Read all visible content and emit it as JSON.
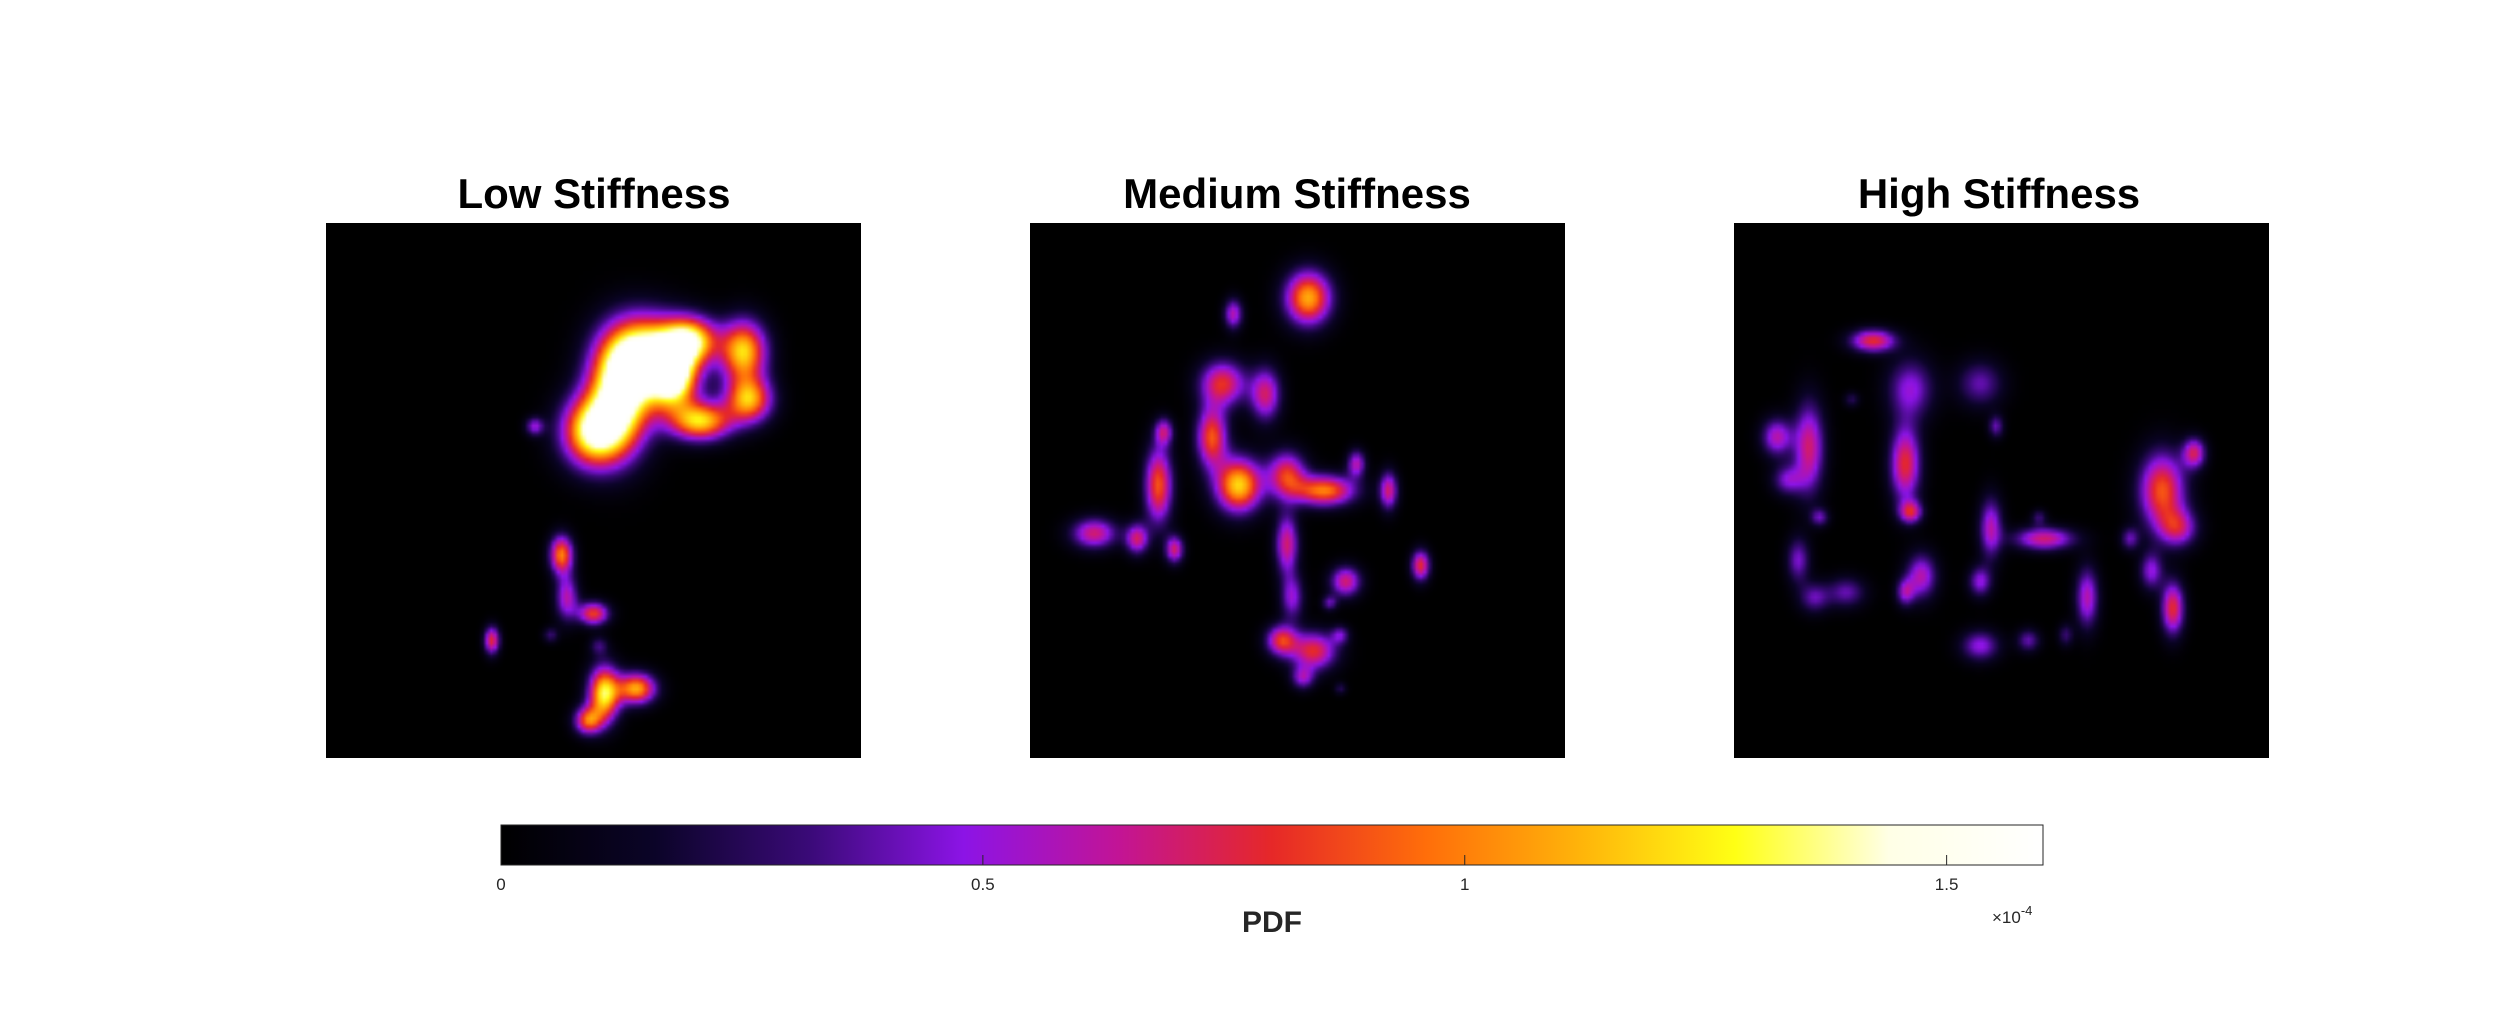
{
  "chart_data": {
    "type": "heatmap",
    "colormap": "hot-purple (black → purple → red → orange → yellow → white)",
    "panels": [
      {
        "title": "Low Stiffness",
        "blobs": [
          {
            "x": 0.6,
            "y": 0.25,
            "sx": 0.05,
            "sy": 0.05,
            "w": 1.55
          },
          {
            "x": 0.55,
            "y": 0.32,
            "sx": 0.04,
            "sy": 0.07,
            "w": 1.5
          },
          {
            "x": 0.5,
            "y": 0.39,
            "sx": 0.04,
            "sy": 0.045,
            "w": 1.4
          },
          {
            "x": 0.68,
            "y": 0.22,
            "sx": 0.035,
            "sy": 0.03,
            "w": 1.3
          },
          {
            "x": 0.78,
            "y": 0.24,
            "sx": 0.03,
            "sy": 0.04,
            "w": 1.2
          },
          {
            "x": 0.79,
            "y": 0.33,
            "sx": 0.03,
            "sy": 0.03,
            "w": 1.1
          },
          {
            "x": 0.7,
            "y": 0.37,
            "sx": 0.04,
            "sy": 0.025,
            "w": 1.2
          },
          {
            "x": 0.65,
            "y": 0.29,
            "sx": 0.03,
            "sy": 0.04,
            "w": 1.35
          },
          {
            "x": 0.39,
            "y": 0.38,
            "sx": 0.012,
            "sy": 0.012,
            "w": 0.5
          },
          {
            "x": 0.44,
            "y": 0.62,
            "sx": 0.015,
            "sy": 0.025,
            "w": 1.0
          },
          {
            "x": 0.45,
            "y": 0.7,
            "sx": 0.015,
            "sy": 0.03,
            "w": 0.6
          },
          {
            "x": 0.5,
            "y": 0.73,
            "sx": 0.02,
            "sy": 0.015,
            "w": 0.85
          },
          {
            "x": 0.31,
            "y": 0.78,
            "sx": 0.01,
            "sy": 0.018,
            "w": 0.8
          },
          {
            "x": 0.42,
            "y": 0.77,
            "sx": 0.01,
            "sy": 0.01,
            "w": 0.3
          },
          {
            "x": 0.51,
            "y": 0.79,
            "sx": 0.012,
            "sy": 0.012,
            "w": 0.3
          },
          {
            "x": 0.52,
            "y": 0.88,
            "sx": 0.02,
            "sy": 0.035,
            "w": 1.3
          },
          {
            "x": 0.58,
            "y": 0.87,
            "sx": 0.025,
            "sy": 0.02,
            "w": 1.1
          },
          {
            "x": 0.49,
            "y": 0.93,
            "sx": 0.018,
            "sy": 0.018,
            "w": 0.9
          }
        ]
      },
      {
        "title": "Medium Stiffness",
        "blobs": [
          {
            "x": 0.52,
            "y": 0.14,
            "sx": 0.03,
            "sy": 0.035,
            "w": 1.1
          },
          {
            "x": 0.38,
            "y": 0.17,
            "sx": 0.012,
            "sy": 0.02,
            "w": 0.6
          },
          {
            "x": 0.36,
            "y": 0.3,
            "sx": 0.03,
            "sy": 0.03,
            "w": 0.8
          },
          {
            "x": 0.34,
            "y": 0.4,
            "sx": 0.02,
            "sy": 0.04,
            "w": 0.9
          },
          {
            "x": 0.44,
            "y": 0.32,
            "sx": 0.02,
            "sy": 0.035,
            "w": 0.7
          },
          {
            "x": 0.25,
            "y": 0.39,
            "sx": 0.012,
            "sy": 0.018,
            "w": 0.6
          },
          {
            "x": 0.39,
            "y": 0.49,
            "sx": 0.03,
            "sy": 0.035,
            "w": 1.2
          },
          {
            "x": 0.48,
            "y": 0.47,
            "sx": 0.025,
            "sy": 0.03,
            "w": 0.8
          },
          {
            "x": 0.55,
            "y": 0.5,
            "sx": 0.04,
            "sy": 0.02,
            "w": 1.0
          },
          {
            "x": 0.61,
            "y": 0.45,
            "sx": 0.012,
            "sy": 0.018,
            "w": 0.6
          },
          {
            "x": 0.67,
            "y": 0.5,
            "sx": 0.012,
            "sy": 0.025,
            "w": 0.7
          },
          {
            "x": 0.73,
            "y": 0.64,
            "sx": 0.012,
            "sy": 0.02,
            "w": 0.8
          },
          {
            "x": 0.24,
            "y": 0.49,
            "sx": 0.018,
            "sy": 0.05,
            "w": 0.9
          },
          {
            "x": 0.2,
            "y": 0.59,
            "sx": 0.015,
            "sy": 0.02,
            "w": 0.7
          },
          {
            "x": 0.27,
            "y": 0.61,
            "sx": 0.012,
            "sy": 0.018,
            "w": 0.7
          },
          {
            "x": 0.12,
            "y": 0.58,
            "sx": 0.03,
            "sy": 0.02,
            "w": 0.7
          },
          {
            "x": 0.48,
            "y": 0.6,
            "sx": 0.015,
            "sy": 0.04,
            "w": 0.7
          },
          {
            "x": 0.49,
            "y": 0.7,
            "sx": 0.015,
            "sy": 0.03,
            "w": 0.5
          },
          {
            "x": 0.59,
            "y": 0.67,
            "sx": 0.02,
            "sy": 0.02,
            "w": 0.7
          },
          {
            "x": 0.56,
            "y": 0.71,
            "sx": 0.01,
            "sy": 0.01,
            "w": 0.4
          },
          {
            "x": 0.47,
            "y": 0.78,
            "sx": 0.02,
            "sy": 0.02,
            "w": 0.8
          },
          {
            "x": 0.53,
            "y": 0.8,
            "sx": 0.03,
            "sy": 0.025,
            "w": 0.8
          },
          {
            "x": 0.51,
            "y": 0.85,
            "sx": 0.015,
            "sy": 0.015,
            "w": 0.5
          },
          {
            "x": 0.58,
            "y": 0.77,
            "sx": 0.012,
            "sy": 0.012,
            "w": 0.4
          },
          {
            "x": 0.58,
            "y": 0.87,
            "sx": 0.008,
            "sy": 0.008,
            "w": 0.25
          }
        ]
      },
      {
        "title": "High Stiffness",
        "blobs": [
          {
            "x": 0.26,
            "y": 0.22,
            "sx": 0.03,
            "sy": 0.015,
            "w": 0.8
          },
          {
            "x": 0.22,
            "y": 0.33,
            "sx": 0.01,
            "sy": 0.01,
            "w": 0.25
          },
          {
            "x": 0.08,
            "y": 0.4,
            "sx": 0.02,
            "sy": 0.025,
            "w": 0.6
          },
          {
            "x": 0.14,
            "y": 0.42,
            "sx": 0.02,
            "sy": 0.06,
            "w": 0.7
          },
          {
            "x": 0.1,
            "y": 0.48,
            "sx": 0.02,
            "sy": 0.02,
            "w": 0.45
          },
          {
            "x": 0.16,
            "y": 0.55,
            "sx": 0.012,
            "sy": 0.012,
            "w": 0.4
          },
          {
            "x": 0.33,
            "y": 0.31,
            "sx": 0.03,
            "sy": 0.04,
            "w": 0.5
          },
          {
            "x": 0.46,
            "y": 0.3,
            "sx": 0.03,
            "sy": 0.03,
            "w": 0.4
          },
          {
            "x": 0.49,
            "y": 0.38,
            "sx": 0.01,
            "sy": 0.015,
            "w": 0.4
          },
          {
            "x": 0.32,
            "y": 0.45,
            "sx": 0.02,
            "sy": 0.05,
            "w": 0.8
          },
          {
            "x": 0.33,
            "y": 0.54,
            "sx": 0.015,
            "sy": 0.015,
            "w": 0.7
          },
          {
            "x": 0.12,
            "y": 0.63,
            "sx": 0.015,
            "sy": 0.03,
            "w": 0.45
          },
          {
            "x": 0.15,
            "y": 0.7,
            "sx": 0.02,
            "sy": 0.02,
            "w": 0.4
          },
          {
            "x": 0.21,
            "y": 0.69,
            "sx": 0.025,
            "sy": 0.02,
            "w": 0.4
          },
          {
            "x": 0.35,
            "y": 0.66,
            "sx": 0.02,
            "sy": 0.03,
            "w": 0.6
          },
          {
            "x": 0.32,
            "y": 0.69,
            "sx": 0.012,
            "sy": 0.018,
            "w": 0.5
          },
          {
            "x": 0.48,
            "y": 0.57,
            "sx": 0.015,
            "sy": 0.04,
            "w": 0.6
          },
          {
            "x": 0.46,
            "y": 0.67,
            "sx": 0.015,
            "sy": 0.02,
            "w": 0.5
          },
          {
            "x": 0.58,
            "y": 0.59,
            "sx": 0.04,
            "sy": 0.015,
            "w": 0.7
          },
          {
            "x": 0.57,
            "y": 0.55,
            "sx": 0.01,
            "sy": 0.01,
            "w": 0.3
          },
          {
            "x": 0.46,
            "y": 0.79,
            "sx": 0.025,
            "sy": 0.02,
            "w": 0.5
          },
          {
            "x": 0.55,
            "y": 0.78,
            "sx": 0.015,
            "sy": 0.015,
            "w": 0.4
          },
          {
            "x": 0.66,
            "y": 0.7,
            "sx": 0.015,
            "sy": 0.04,
            "w": 0.6
          },
          {
            "x": 0.62,
            "y": 0.77,
            "sx": 0.01,
            "sy": 0.015,
            "w": 0.3
          },
          {
            "x": 0.8,
            "y": 0.5,
            "sx": 0.03,
            "sy": 0.05,
            "w": 0.9
          },
          {
            "x": 0.86,
            "y": 0.43,
            "sx": 0.015,
            "sy": 0.02,
            "w": 0.7
          },
          {
            "x": 0.83,
            "y": 0.57,
            "sx": 0.025,
            "sy": 0.025,
            "w": 0.6
          },
          {
            "x": 0.78,
            "y": 0.65,
            "sx": 0.015,
            "sy": 0.025,
            "w": 0.5
          },
          {
            "x": 0.82,
            "y": 0.72,
            "sx": 0.015,
            "sy": 0.035,
            "w": 0.8
          },
          {
            "x": 0.74,
            "y": 0.59,
            "sx": 0.012,
            "sy": 0.015,
            "w": 0.4
          }
        ]
      }
    ],
    "colorbar": {
      "label": "PDF",
      "range": [
        0,
        1.6
      ],
      "ticks": [
        0,
        0.5,
        1,
        1.5
      ],
      "tick_labels": [
        "0",
        "0.5",
        "1",
        "1.5"
      ],
      "exponent_label": "×10",
      "exponent_power": "-4",
      "stops": [
        "#000000",
        "#0b0428",
        "#3a0a78",
        "#8c14e6",
        "#c21496",
        "#e62828",
        "#ff6e0a",
        "#ffb40a",
        "#ffff14",
        "#ffffe6",
        "#ffffff"
      ]
    }
  }
}
